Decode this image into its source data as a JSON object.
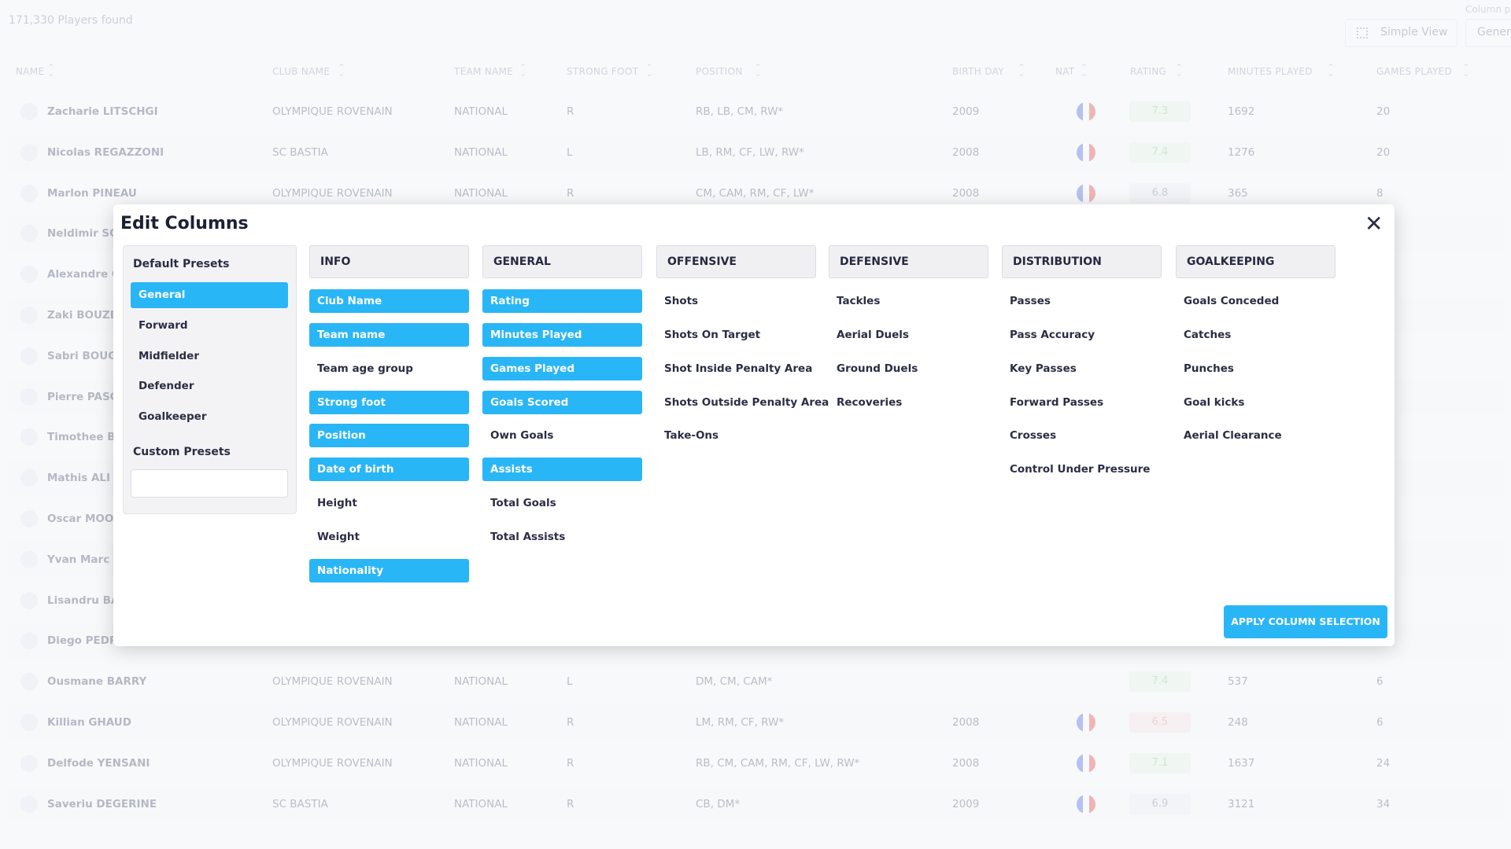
{
  "header": {
    "count": "171,330 Players found",
    "column_presets_label": "Column p",
    "view_button": "Simple View",
    "preset_button": "Genera"
  },
  "table": {
    "columns": [
      "NAME",
      "CLUB NAME",
      "TEAM NAME",
      "STRONG FOOT",
      "POSITION",
      "BIRTH DAY",
      "NAT",
      "RATING",
      "MINUTES PLAYED",
      "GAMES PLAYED"
    ],
    "rows": [
      {
        "name": "Zacharie LITSCHGI",
        "club": "OLYMPIQUE ROVENAIN",
        "team": "NATIONAL",
        "foot": "R",
        "position": "RB, LB, CM, RW*",
        "birth": "2009",
        "flag": true,
        "rating": "7.3",
        "minutes": "1692",
        "games": "20"
      },
      {
        "name": "Nicolas REGAZZONI",
        "club": "SC BASTIA",
        "team": "NATIONAL",
        "foot": "L",
        "position": "LB, RM, CF, LW, RW*",
        "birth": "2008",
        "flag": true,
        "rating": "7.4",
        "minutes": "1276",
        "games": "20"
      },
      {
        "name": "Marlon PINEAU",
        "club": "OLYMPIQUE ROVENAIN",
        "team": "NATIONAL",
        "foot": "R",
        "position": "CM, CAM, RM, CF, LW*",
        "birth": "2008",
        "flag": true,
        "rating": "6.8",
        "minutes": "365",
        "games": "8"
      },
      {
        "name": "Neldimir SO"
      },
      {
        "name": "Alexandre G"
      },
      {
        "name": "Zaki BOUZD"
      },
      {
        "name": "Sabri BOUGI"
      },
      {
        "name": "Pierre PASCA"
      },
      {
        "name": "Timothee BO"
      },
      {
        "name": "Mathis ALI"
      },
      {
        "name": "Oscar MOOR"
      },
      {
        "name": "Yvan Marc K"
      },
      {
        "name": "Lisandru BA"
      },
      {
        "name": "Diego PEDRE"
      },
      {
        "name": "Ousmane BARRY",
        "club": "OLYMPIQUE ROVENAIN",
        "team": "NATIONAL",
        "foot": "L",
        "position": "DM, CM, CAM*",
        "rating": "7.4",
        "minutes": "537",
        "games": "6"
      },
      {
        "name": "Killian GHAUD",
        "club": "OLYMPIQUE ROVENAIN",
        "team": "NATIONAL",
        "foot": "R",
        "position": "LM, RM, CF, RW*",
        "birth": "2008",
        "flag": true,
        "rating": "6.5",
        "minutes": "248",
        "games": "6"
      },
      {
        "name": "Delfode YENSANI",
        "club": "OLYMPIQUE ROVENAIN",
        "team": "NATIONAL",
        "foot": "R",
        "position": "RB, CM, CAM, RM, CF, LW, RW*",
        "birth": "2008",
        "flag": true,
        "rating": "7.1",
        "minutes": "1637",
        "games": "24"
      },
      {
        "name": "Saveriu DEGERINE",
        "club": "SC BASTIA",
        "team": "NATIONAL",
        "foot": "R",
        "position": "CB, DM*",
        "birth": "2009",
        "flag": true,
        "rating": "6.9",
        "minutes": "3121",
        "games": "34"
      }
    ]
  },
  "modal": {
    "title": "Edit Columns",
    "default_presets_title": "Default Presets",
    "presets": [
      {
        "label": "General",
        "selected": true
      },
      {
        "label": "Forward",
        "selected": false
      },
      {
        "label": "Midfielder",
        "selected": false
      },
      {
        "label": "Defender",
        "selected": false
      },
      {
        "label": "Goalkeeper",
        "selected": false
      }
    ],
    "custom_presets_title": "Custom Presets",
    "groups": [
      {
        "title": "INFO",
        "items": [
          {
            "label": "Club Name",
            "selected": true
          },
          {
            "label": "Team name",
            "selected": true
          },
          {
            "label": "Team age group",
            "selected": false
          },
          {
            "label": "Strong foot",
            "selected": true
          },
          {
            "label": "Position",
            "selected": true
          },
          {
            "label": "Date of birth",
            "selected": true
          },
          {
            "label": "Height",
            "selected": false
          },
          {
            "label": "Weight",
            "selected": false
          },
          {
            "label": "Nationality",
            "selected": true
          }
        ]
      },
      {
        "title": "GENERAL",
        "items": [
          {
            "label": "Rating",
            "selected": true
          },
          {
            "label": "Minutes Played",
            "selected": true
          },
          {
            "label": "Games Played",
            "selected": true
          },
          {
            "label": "Goals Scored",
            "selected": true
          },
          {
            "label": "Own Goals",
            "selected": false
          },
          {
            "label": "Assists",
            "selected": true
          },
          {
            "label": "Total Goals",
            "selected": false
          },
          {
            "label": "Total Assists",
            "selected": false
          }
        ]
      },
      {
        "title": "OFFENSIVE",
        "items": [
          {
            "label": "Shots",
            "selected": false
          },
          {
            "label": "Shots On Target",
            "selected": false
          },
          {
            "label": "Shot Inside Penalty Area",
            "selected": false
          },
          {
            "label": "Shots Outside Penalty Area",
            "selected": false
          },
          {
            "label": "Take-Ons",
            "selected": false
          }
        ]
      },
      {
        "title": "DEFENSIVE",
        "items": [
          {
            "label": "Tackles",
            "selected": false
          },
          {
            "label": "Aerial Duels",
            "selected": false
          },
          {
            "label": "Ground Duels",
            "selected": false
          },
          {
            "label": "Recoveries",
            "selected": false
          }
        ]
      },
      {
        "title": "DISTRIBUTION",
        "items": [
          {
            "label": "Passes",
            "selected": false
          },
          {
            "label": "Pass Accuracy",
            "selected": false
          },
          {
            "label": "Key Passes",
            "selected": false
          },
          {
            "label": "Forward Passes",
            "selected": false
          },
          {
            "label": "Crosses",
            "selected": false
          },
          {
            "label": "Control Under Pressure",
            "selected": false
          }
        ]
      },
      {
        "title": "GOALKEEPING",
        "items": [
          {
            "label": "Goals Conceded",
            "selected": false
          },
          {
            "label": "Catches",
            "selected": false
          },
          {
            "label": "Punches",
            "selected": false
          },
          {
            "label": "Goal kicks",
            "selected": false
          },
          {
            "label": "Aerial Clearance",
            "selected": false
          }
        ]
      }
    ],
    "apply_button": "APPLY COLUMN SELECTION"
  }
}
